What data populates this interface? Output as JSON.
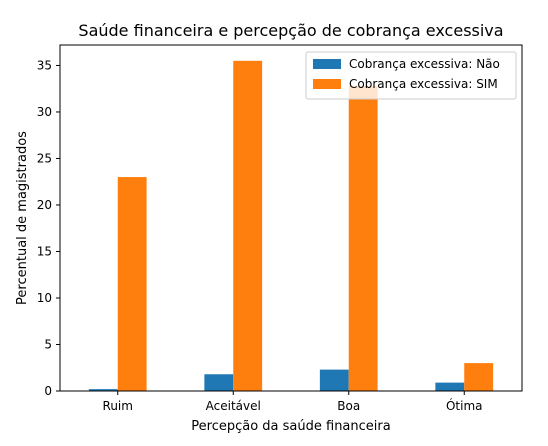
{
  "chart_data": {
    "type": "bar",
    "title": "Saúde financeira e percepção de cobrança excessiva",
    "xlabel": "Percepção da saúde financeira",
    "ylabel": "Percentual de magistrados",
    "categories": [
      "Ruim",
      "Aceitável",
      "Boa",
      "Ótima"
    ],
    "series": [
      {
        "name": "Cobrança excessiva: Não",
        "values": [
          0.2,
          1.8,
          2.3,
          0.9
        ],
        "color": "#1f77b4"
      },
      {
        "name": "Cobrança excessiva: SIM",
        "values": [
          23.0,
          35.5,
          32.8,
          3.0
        ],
        "color": "#ff7f0e"
      }
    ],
    "ylim": [
      0,
      37.2
    ],
    "yticks": [
      0,
      5,
      10,
      15,
      20,
      25,
      30,
      35
    ],
    "legend_position": "top-right",
    "grid": false
  }
}
